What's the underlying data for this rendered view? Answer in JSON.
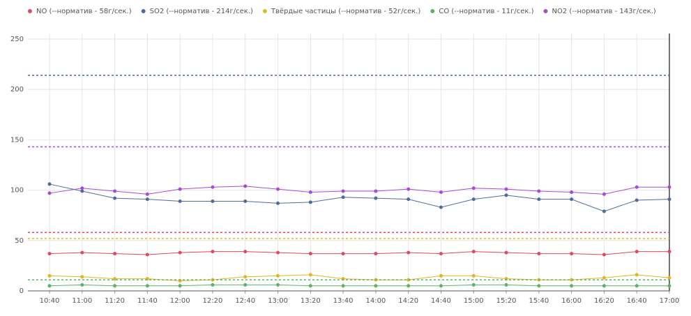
{
  "chart_data": {
    "type": "line",
    "categories": [
      "10:40",
      "11:00",
      "11:20",
      "11:40",
      "12:00",
      "12:20",
      "12:40",
      "13:00",
      "13:20",
      "13:40",
      "14:00",
      "14:20",
      "14:40",
      "15:00",
      "15:20",
      "15:40",
      "16:00",
      "16:20",
      "16:40",
      "17:00"
    ],
    "ylim": [
      0,
      250
    ],
    "yticks": [
      0,
      50,
      100,
      150,
      200,
      250
    ],
    "grid": true,
    "series": [
      {
        "name": "NO (--норматив - 58г/сек.)",
        "color": "#e0495e",
        "threshold": 58,
        "values": [
          37,
          38,
          37,
          36,
          38,
          39,
          39,
          38,
          37,
          37,
          37,
          38,
          37,
          39,
          38,
          37,
          37,
          36,
          39,
          39
        ]
      },
      {
        "name": "SO2 (--норматив - 214г/сек.)",
        "color": "#4f6c98",
        "threshold": 214,
        "values": [
          106,
          99,
          92,
          91,
          89,
          89,
          89,
          87,
          88,
          93,
          92,
          91,
          83,
          91,
          95,
          91,
          91,
          79,
          90,
          91
        ]
      },
      {
        "name": "Твёрдые частицы (--норматив - 52г/сек.)",
        "color": "#e2b622",
        "threshold": 52,
        "values": [
          15,
          14,
          12,
          12,
          10,
          11,
          14,
          15,
          16,
          12,
          11,
          11,
          15,
          15,
          12,
          11,
          11,
          13,
          16,
          13
        ]
      },
      {
        "name": "CO (--норматив - 11г/сек.)",
        "color": "#5bb36a",
        "threshold": 11,
        "values": [
          5,
          6,
          5,
          5,
          5,
          6,
          6,
          6,
          5,
          5,
          5,
          5,
          5,
          6,
          6,
          5,
          5,
          5,
          5,
          5
        ]
      },
      {
        "name": "NO2 (--норматив - 143г/сек.)",
        "color": "#a64bd6",
        "threshold": 143,
        "values": [
          97,
          102,
          99,
          96,
          101,
          103,
          104,
          101,
          98,
          99,
          99,
          101,
          98,
          102,
          101,
          99,
          98,
          96,
          103,
          103
        ]
      }
    ]
  }
}
